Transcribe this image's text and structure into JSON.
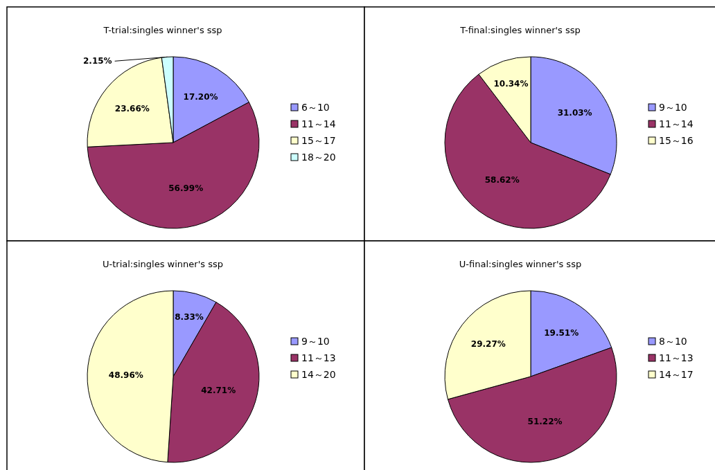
{
  "chart_data": [
    {
      "type": "pie",
      "title": "T-trial:singles winner's ssp",
      "categories": [
        "6～10",
        "11～14",
        "15～17",
        "18～20"
      ],
      "values": [
        17.2,
        56.99,
        23.66,
        2.15
      ],
      "value_labels": [
        "17.20%",
        "56.99%",
        "23.66%",
        "2.15%"
      ],
      "colors": [
        "#9999ff",
        "#993366",
        "#ffffcc",
        "#ccffff"
      ],
      "legend": "right"
    },
    {
      "type": "pie",
      "title": "T-final:singles winner's ssp",
      "categories": [
        "9～10",
        "11～14",
        "15～16"
      ],
      "values": [
        31.03,
        58.62,
        10.34
      ],
      "value_labels": [
        "31.03%",
        "58.62%",
        "10.34%"
      ],
      "colors": [
        "#9999ff",
        "#993366",
        "#ffffcc"
      ],
      "legend": "right"
    },
    {
      "type": "pie",
      "title": "U-trial:singles winner's ssp",
      "categories": [
        "9～10",
        "11～13",
        "14～20"
      ],
      "values": [
        8.33,
        42.71,
        48.96
      ],
      "value_labels": [
        "8.33%",
        "42.71%",
        "48.96%"
      ],
      "colors": [
        "#9999ff",
        "#993366",
        "#ffffcc"
      ],
      "legend": "right"
    },
    {
      "type": "pie",
      "title": "U-final:singles winner's ssp",
      "categories": [
        "8～10",
        "11～13",
        "14～17"
      ],
      "values": [
        19.51,
        51.22,
        29.27
      ],
      "value_labels": [
        "19.51%",
        "51.22%",
        "29.27%"
      ],
      "colors": [
        "#9999ff",
        "#993366",
        "#ffffcc"
      ],
      "legend": "right"
    }
  ]
}
